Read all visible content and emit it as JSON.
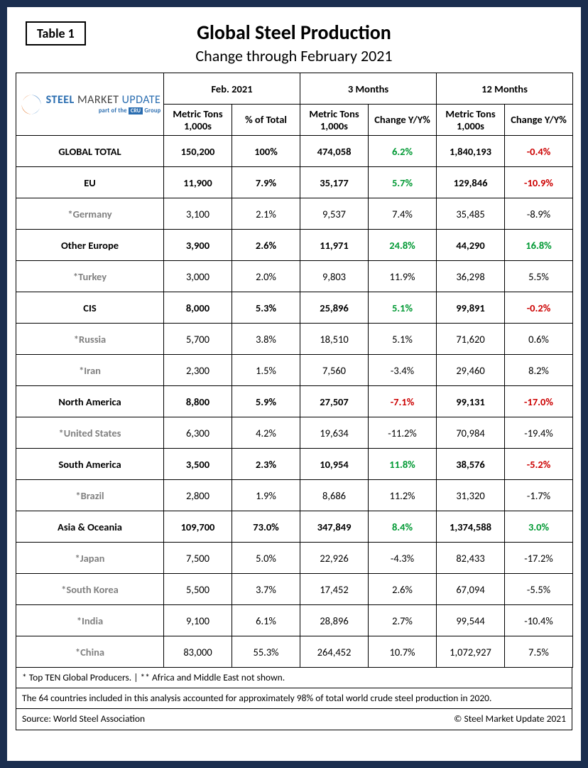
{
  "frame_border_color": "#1b2e4f",
  "table_label": "Table 1",
  "title": "Global Steel Production",
  "subtitle": "Change through February 2021",
  "logo": {
    "word1": "STEEL",
    "word2": "MARKET",
    "word3": "UPDATE",
    "subline_prefix": "part of the ",
    "subline_box": "CRU",
    "subline_suffix": " Group",
    "color_steel": "#2a6db0",
    "color_swish_top": "#3a7cc2",
    "color_swish_bottom": "#e3772a"
  },
  "column_groups": [
    {
      "label": "Feb. 2021",
      "subs": [
        "Metric Tons 1,000s",
        "% of Total"
      ]
    },
    {
      "label": "3 Months",
      "subs": [
        "Metric Tons 1,000s",
        "Change Y/Y%"
      ]
    },
    {
      "label": "12 Months",
      "subs": [
        "Metric Tons 1,000s",
        "Change Y/Y%"
      ]
    }
  ],
  "rows": [
    {
      "type": "region",
      "name": "GLOBAL TOTAL",
      "c1": "150,200",
      "c2": "100%",
      "c3": "474,058",
      "c4": "6.2%",
      "c4s": "pos",
      "c5": "1,840,193",
      "c6": "-0.4%",
      "c6s": "neg"
    },
    {
      "type": "region",
      "name": "EU",
      "c1": "11,900",
      "c2": "7.9%",
      "c3": "35,177",
      "c4": "5.7%",
      "c4s": "pos",
      "c5": "129,846",
      "c6": "-10.9%",
      "c6s": "neg"
    },
    {
      "type": "country",
      "name": "*Germany",
      "c1": "3,100",
      "c2": "2.1%",
      "c3": "9,537",
      "c4": "7.4%",
      "c4s": "pos",
      "c5": "35,485",
      "c6": "-8.9%",
      "c6s": "neg"
    },
    {
      "type": "region",
      "name": "Other Europe",
      "c1": "3,900",
      "c2": "2.6%",
      "c3": "11,971",
      "c4": "24.8%",
      "c4s": "pos",
      "c5": "44,290",
      "c6": "16.8%",
      "c6s": "pos"
    },
    {
      "type": "country",
      "name": "*Turkey",
      "c1": "3,000",
      "c2": "2.0%",
      "c3": "9,803",
      "c4": "11.9%",
      "c4s": "pos",
      "c5": "36,298",
      "c6": "5.5%",
      "c6s": "pos"
    },
    {
      "type": "region",
      "name": "CIS",
      "c1": "8,000",
      "c2": "5.3%",
      "c3": "25,896",
      "c4": "5.1%",
      "c4s": "pos",
      "c5": "99,891",
      "c6": "-0.2%",
      "c6s": "neg"
    },
    {
      "type": "country",
      "name": "*Russia",
      "c1": "5,700",
      "c2": "3.8%",
      "c3": "18,510",
      "c4": "5.1%",
      "c4s": "pos",
      "c5": "71,620",
      "c6": "0.6%",
      "c6s": "pos"
    },
    {
      "type": "country",
      "name": "*Iran",
      "c1": "2,300",
      "c2": "1.5%",
      "c3": "7,560",
      "c4": "-3.4%",
      "c4s": "neg",
      "c5": "29,460",
      "c6": "8.2%",
      "c6s": "pos"
    },
    {
      "type": "region",
      "name": "North America",
      "c1": "8,800",
      "c2": "5.9%",
      "c3": "27,507",
      "c4": "-7.1%",
      "c4s": "neg",
      "c5": "99,131",
      "c6": "-17.0%",
      "c6s": "neg"
    },
    {
      "type": "country",
      "name": "*United States",
      "c1": "6,300",
      "c2": "4.2%",
      "c3": "19,634",
      "c4": "-11.2%",
      "c4s": "neg",
      "c5": "70,984",
      "c6": "-19.4%",
      "c6s": "neg"
    },
    {
      "type": "region",
      "name": "South America",
      "c1": "3,500",
      "c2": "2.3%",
      "c3": "10,954",
      "c4": "11.8%",
      "c4s": "pos",
      "c5": "38,576",
      "c6": "-5.2%",
      "c6s": "neg"
    },
    {
      "type": "country",
      "name": "*Brazil",
      "c1": "2,800",
      "c2": "1.9%",
      "c3": "8,686",
      "c4": "11.2%",
      "c4s": "pos",
      "c5": "31,320",
      "c6": "-1.7%",
      "c6s": "neg"
    },
    {
      "type": "region",
      "name": "Asia & Oceania",
      "c1": "109,700",
      "c2": "73.0%",
      "c3": "347,849",
      "c4": "8.4%",
      "c4s": "pos",
      "c5": "1,374,588",
      "c6": "3.0%",
      "c6s": "pos"
    },
    {
      "type": "country",
      "name": "*Japan",
      "c1": "7,500",
      "c2": "5.0%",
      "c3": "22,926",
      "c4": "-4.3%",
      "c4s": "neg",
      "c5": "82,433",
      "c6": "-17.2%",
      "c6s": "neg"
    },
    {
      "type": "country",
      "name": "*South Korea",
      "c1": "5,500",
      "c2": "3.7%",
      "c3": "17,452",
      "c4": "2.6%",
      "c4s": "pos",
      "c5": "67,094",
      "c6": "-5.5%",
      "c6s": "neg"
    },
    {
      "type": "country",
      "name": "*India",
      "c1": "9,100",
      "c2": "6.1%",
      "c3": "28,896",
      "c4": "2.7%",
      "c4s": "pos",
      "c5": "99,544",
      "c6": "-10.4%",
      "c6s": "neg"
    },
    {
      "type": "country",
      "name": "*China",
      "c1": "83,000",
      "c2": "55.3%",
      "c3": "264,452",
      "c4": "10.7%",
      "c4s": "pos",
      "c5": "1,072,927",
      "c6": "7.5%",
      "c6s": "pos"
    }
  ],
  "footnotes": {
    "line1": "* Top TEN Global Producers. | ** Africa and Middle East not shown.",
    "line2": "The 64 countries included in this analysis accounted for approximately 98% of total world crude steel production in 2020.",
    "line3_left": "Source: World Steel Association",
    "line3_right": "© Steel Market Update 2021"
  },
  "colors": {
    "positive": "#009933",
    "negative": "#cc0000",
    "country_text": "#808080",
    "border": "#000000"
  }
}
